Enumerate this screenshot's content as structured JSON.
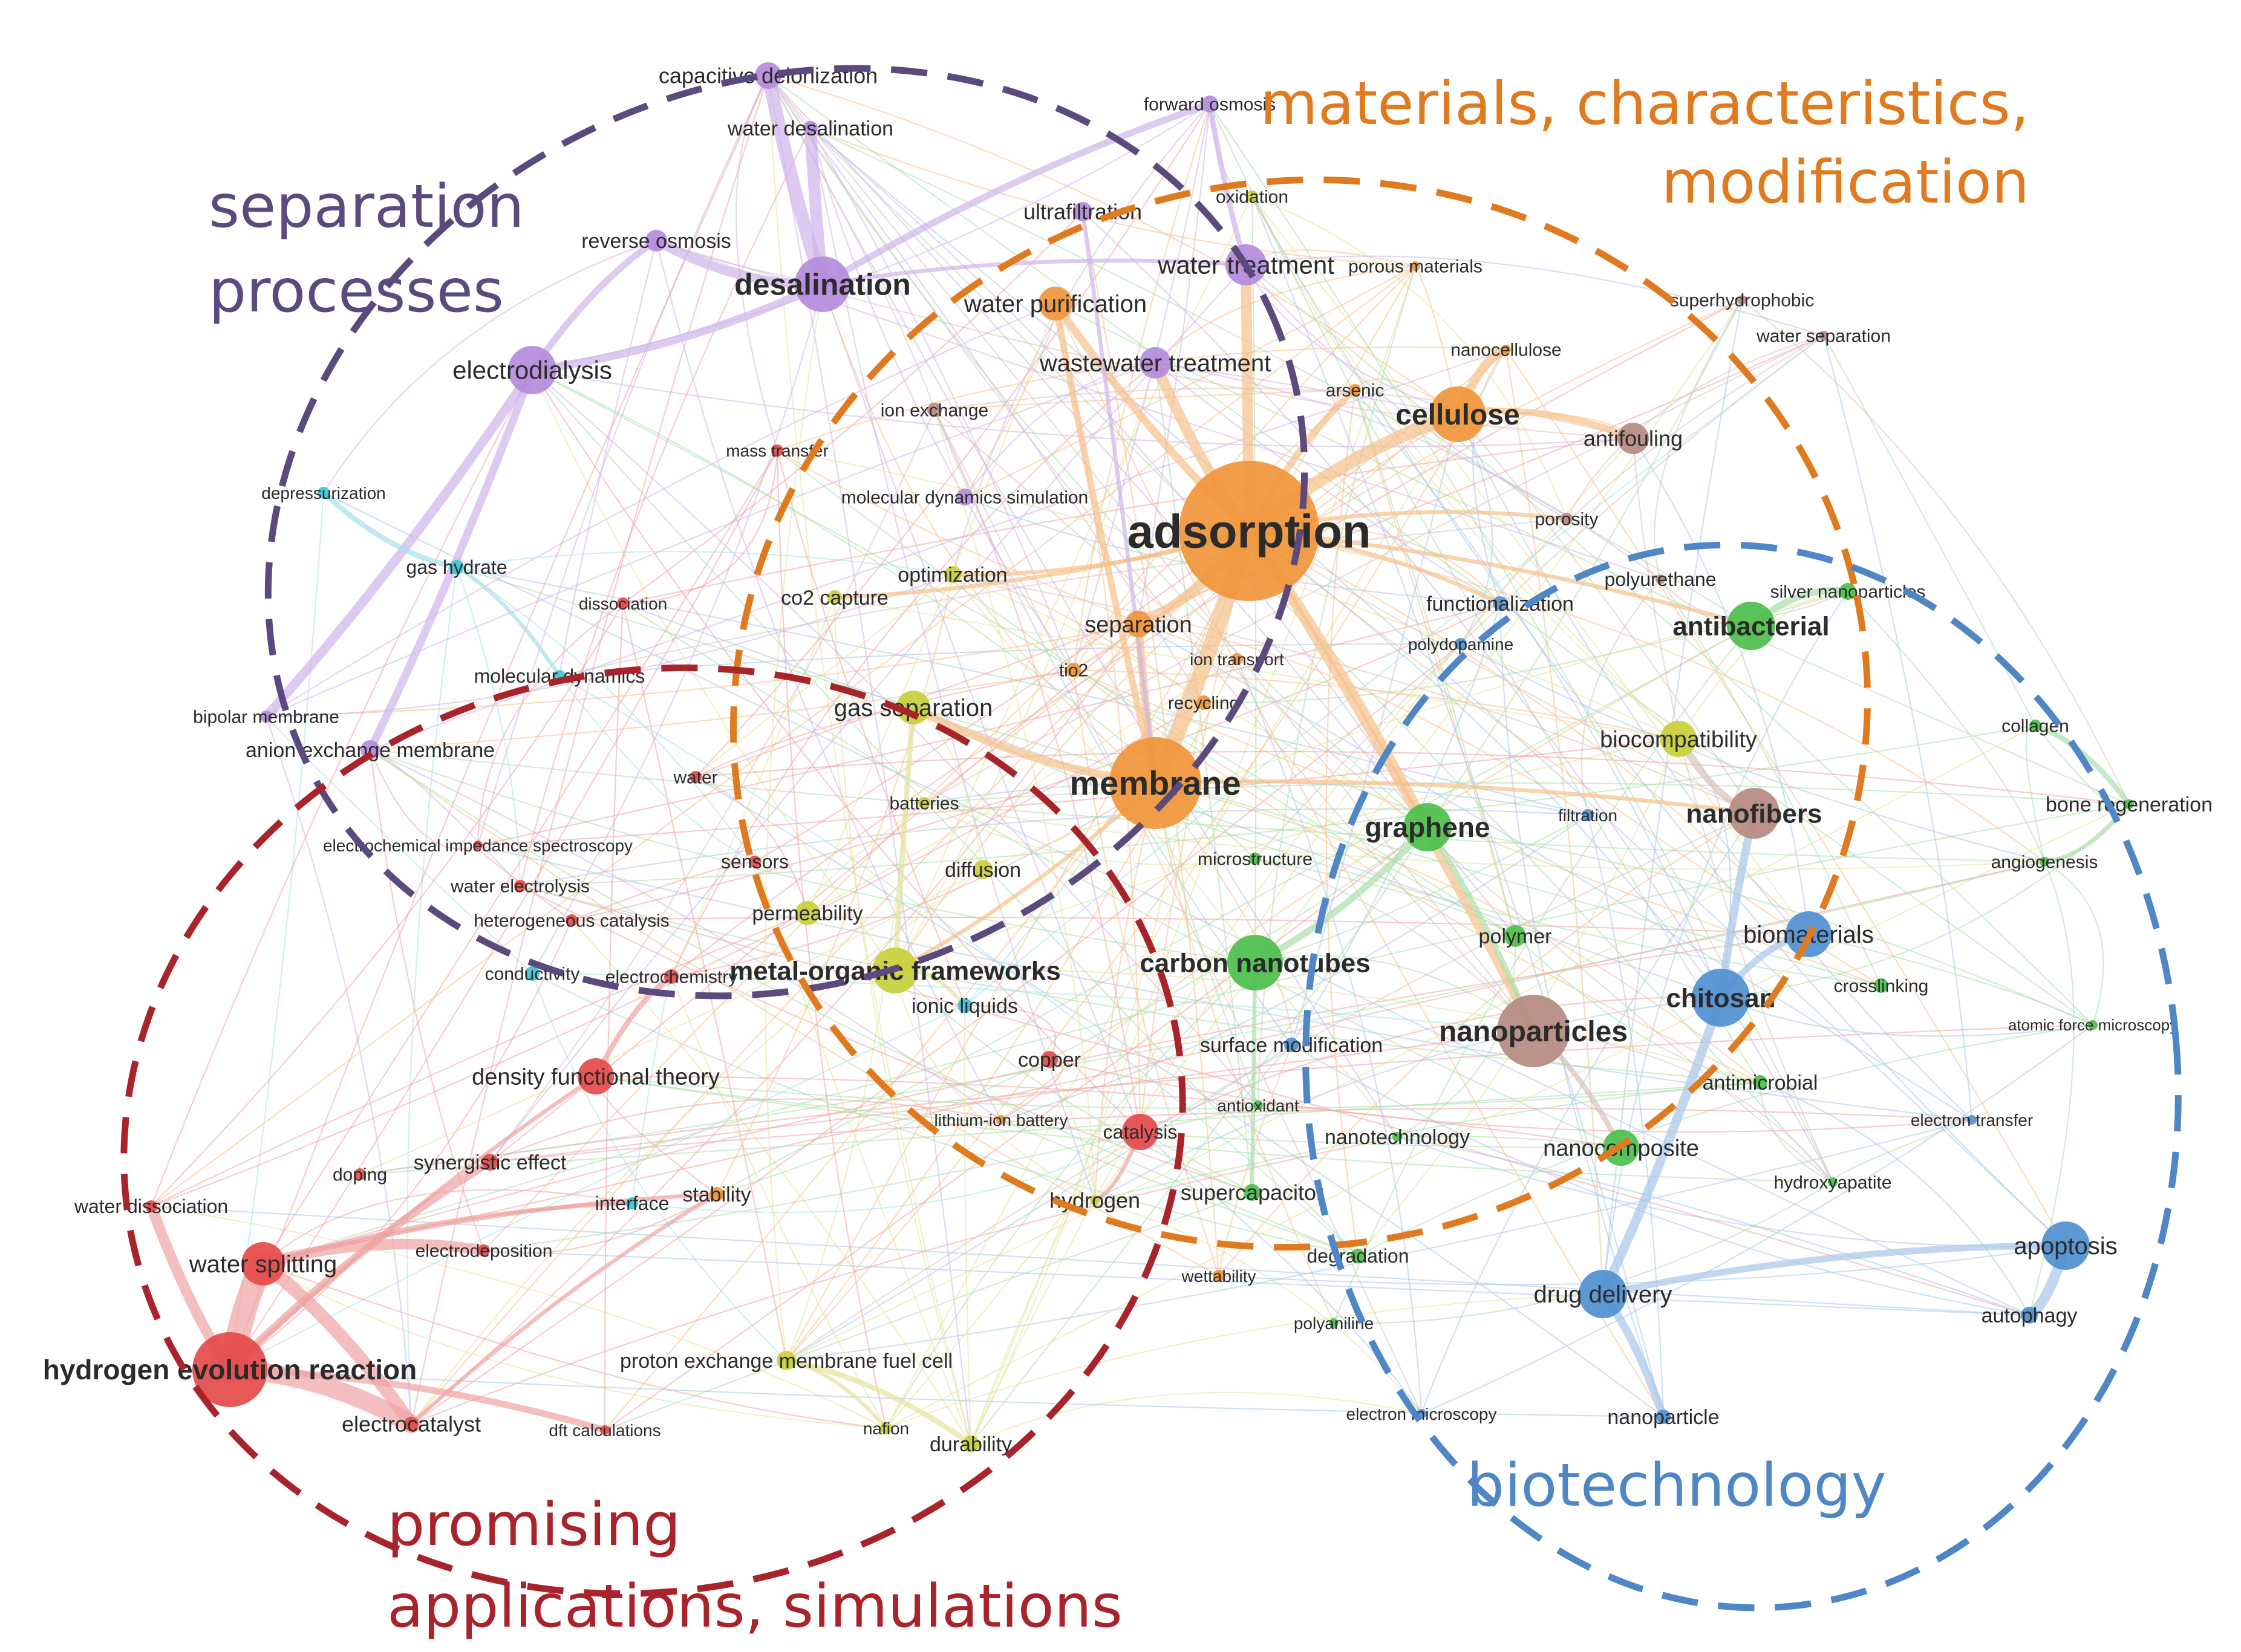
{
  "cluster_titles": {
    "separation": [
      "separation",
      "processes"
    ],
    "materials": [
      "materials, characteristics,",
      "modification"
    ],
    "promising": [
      "promising",
      "applications, simulations"
    ],
    "biotech": [
      "biotechnology"
    ]
  },
  "colors": {
    "separation": "#5a4a7e",
    "materials": "#e07a1f",
    "promising": "#a8232a",
    "biotech": "#4f86c6",
    "purple_nodes": "#b48bdc",
    "orange_nodes": "#f0953a",
    "red_nodes": "#e54a4a",
    "green_nodes": "#4cbf4c",
    "blue_nodes": "#4f90d0",
    "yellow_nodes": "#c9cf3a",
    "cyan_nodes": "#3fc4d6",
    "brown_nodes": "#b58a80"
  },
  "keywords": [
    "capacitive deionization",
    "forward osmosis",
    "water desalination",
    "oxidation",
    "ultrafiltration",
    "reverse osmosis",
    "desalination",
    "water treatment",
    "porous materials",
    "water purification",
    "superhydrophobic",
    "water separation",
    "nanocellulose",
    "electrodialysis",
    "wastewater treatment",
    "arsenic",
    "cellulose",
    "ion exchange",
    "antifouling",
    "mass transfer",
    "depressurization",
    "molecular dynamics simulation",
    "porosity",
    "adsorption",
    "gas hydrate",
    "optimization",
    "polyurethane",
    "silver nanoparticles",
    "dissociation",
    "co2 capture",
    "functionalization",
    "separation",
    "antibacterial",
    "polydopamine",
    "ion transport",
    "tio2",
    "molecular dynamics",
    "recycling",
    "gas separation",
    "bipolar membrane",
    "biocompatibility",
    "collagen",
    "anion exchange membrane",
    "water",
    "membrane",
    "batteries",
    "bone regeneration",
    "nanofibers",
    "filtration",
    "graphene",
    "electrochemical impedance spectroscopy",
    "microstructure",
    "angiogenesis",
    "sensors",
    "diffusion",
    "water electrolysis",
    "permeability",
    "heterogeneous catalysis",
    "biomaterials",
    "polymer",
    "carbon nanotubes",
    "metal-organic frameworks",
    "conductivity",
    "electrochemistry",
    "crosslinking",
    "chitosan",
    "ionic liquids",
    "atomic force microscopy",
    "nanoparticles",
    "surface modification",
    "copper",
    "density functional theory",
    "antimicrobial",
    "antioxidant",
    "lithium-ion battery",
    "electron transfer",
    "catalysis",
    "nanotechnology",
    "doping",
    "synergistic effect",
    "nanocomposite",
    "hydroxyapatite",
    "water dissociation",
    "interface",
    "stability",
    "hydrogen",
    "supercapacitor",
    "apoptosis",
    "water splitting",
    "electrodeposition",
    "degradation",
    "wettability",
    "drug delivery",
    "autophagy",
    "polyaniline",
    "proton exchange membrane fuel cell",
    "hydrogen evolution reaction",
    "electrocatalyst",
    "dft calculations",
    "nafion",
    "durability",
    "electron microscopy",
    "nanoparticle"
  ]
}
